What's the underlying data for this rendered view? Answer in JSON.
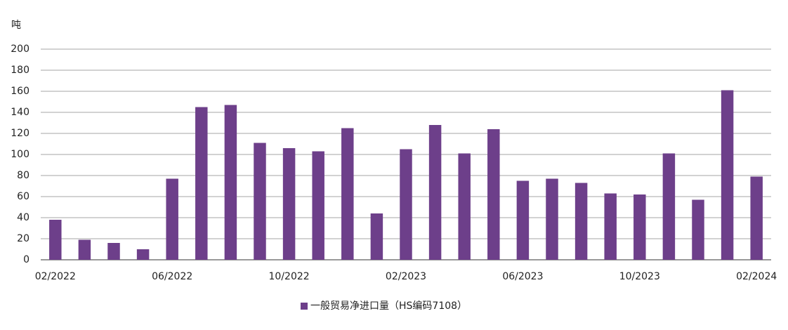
{
  "chart_data": {
    "type": "bar",
    "y_label": "吨",
    "categories": [
      "02/2022",
      null,
      null,
      null,
      "06/2022",
      null,
      null,
      null,
      "10/2022",
      null,
      null,
      null,
      "02/2023",
      null,
      null,
      null,
      "06/2023",
      null,
      null,
      null,
      "10/2023",
      null,
      null,
      null,
      "02/2024"
    ],
    "series": [
      {
        "name": "一般贸易净进口量（HS编码7108）",
        "color": "#6d3f8a",
        "values": [
          38,
          19,
          16,
          10,
          77,
          145,
          147,
          111,
          106,
          103,
          125,
          44,
          105,
          128,
          101,
          124,
          75,
          77,
          73,
          63,
          62,
          101,
          57,
          161,
          79
        ]
      }
    ],
    "ylim": [
      0,
      200
    ],
    "yticks": [
      0,
      20,
      40,
      60,
      80,
      100,
      120,
      140,
      160,
      180,
      200
    ],
    "grid": true,
    "legend": "bottom"
  }
}
